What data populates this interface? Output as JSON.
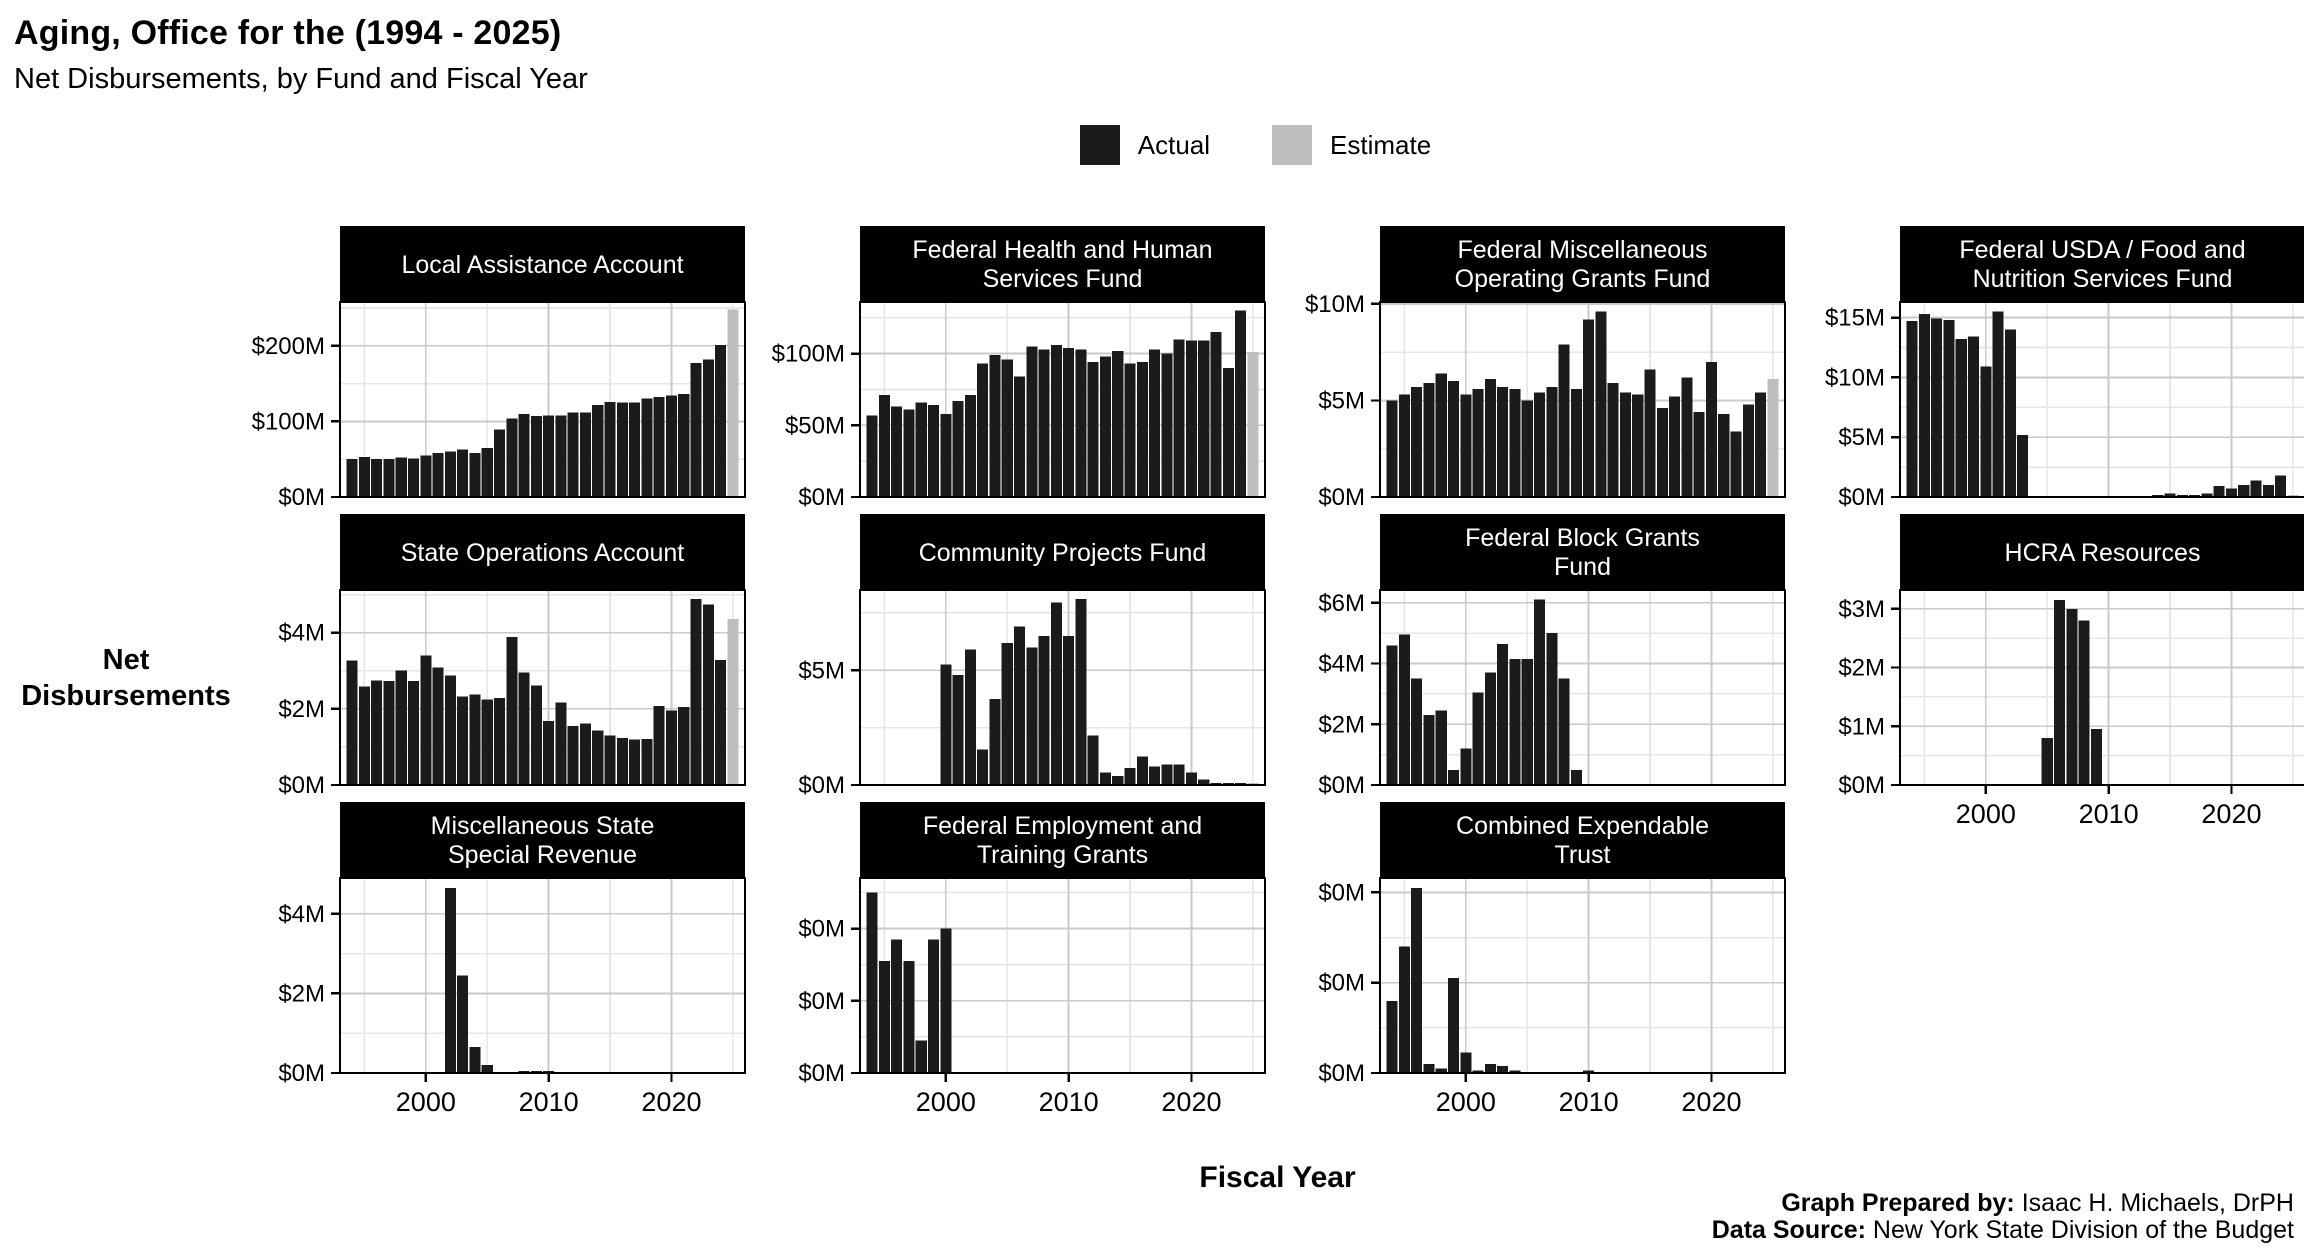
{
  "header": {
    "title": "Aging, Office for the (1994 - 2025)",
    "subtitle": "Net Disbursements, by Fund and Fiscal Year"
  },
  "legend": {
    "actual": "Actual",
    "estimate": "Estimate"
  },
  "axes": {
    "y_title": "Net\nDisbursements",
    "x_title": "Fiscal Year"
  },
  "footer": {
    "prepared_label": "Graph Prepared by:",
    "prepared_value": " Isaac H. Michaels, DrPH",
    "source_label": "Data Source:",
    "source_value": " New York State Division of the Budget"
  },
  "colors": {
    "actual": "#1b1b1b",
    "estimate": "#bebebe",
    "strip_bg": "#000000",
    "strip_text": "#ffffff",
    "grid_major": "#cacaca",
    "grid_minor": "#e6e6e6",
    "panel_border": "#000000",
    "tick": "#000000"
  },
  "chart_data": {
    "type": "bar",
    "title": "Net Disbursements, by Fund and Fiscal Year",
    "x_start": 1994,
    "x_end": 2025,
    "x_axis": {
      "major_ticks": [
        2000,
        2010,
        2020
      ],
      "tick_labels": [
        "2000",
        "2010",
        "2020"
      ],
      "minor_gridlines": [
        1995,
        2005,
        2015,
        2025
      ]
    },
    "estimate_year": 2025,
    "panels": [
      {
        "title_lines": [
          "Local Assistance Account"
        ],
        "ymax": 258,
        "show_x_axis": false,
        "has_estimate": true,
        "y_ticks": [
          {
            "v": 0,
            "label": "$0M"
          },
          {
            "v": 100,
            "label": "$100M"
          },
          {
            "v": 200,
            "label": "$200M"
          }
        ],
        "y_minor": [
          50,
          150,
          250
        ],
        "values": [
          50,
          53,
          50,
          50,
          52,
          51,
          55,
          58,
          60,
          63,
          58,
          65,
          89,
          104,
          110,
          107,
          108,
          108,
          112,
          112,
          122,
          126,
          125,
          125,
          130,
          132,
          134,
          136,
          177,
          182,
          201,
          248
        ]
      },
      {
        "title_lines": [
          "Federal Health and Human",
          "Services Fund"
        ],
        "ymax": 136,
        "show_x_axis": false,
        "has_estimate": true,
        "y_ticks": [
          {
            "v": 0,
            "label": "$0M"
          },
          {
            "v": 50,
            "label": "$50M"
          },
          {
            "v": 100,
            "label": "$100M"
          }
        ],
        "y_minor": [
          25,
          75,
          125
        ],
        "values": [
          57,
          71,
          63,
          61,
          66,
          64,
          58,
          67,
          71,
          93,
          99,
          96,
          84,
          105,
          103,
          106,
          104,
          103,
          94,
          98,
          102,
          93,
          94,
          103,
          100,
          110,
          109,
          109,
          115,
          90,
          130,
          101
        ]
      },
      {
        "title_lines": [
          "Federal Miscellaneous",
          "Operating Grants Fund"
        ],
        "ymax": 10.1,
        "show_x_axis": false,
        "has_estimate": true,
        "y_ticks": [
          {
            "v": 0,
            "label": "$0M"
          },
          {
            "v": 5,
            "label": "$5M"
          },
          {
            "v": 10,
            "label": "$10M"
          }
        ],
        "y_minor": [
          2.5,
          7.5
        ],
        "values": [
          5.0,
          5.3,
          5.7,
          5.9,
          6.4,
          6.0,
          5.3,
          5.6,
          6.1,
          5.7,
          5.6,
          5.0,
          5.4,
          5.7,
          7.9,
          5.6,
          9.2,
          9.6,
          5.9,
          5.4,
          5.3,
          6.6,
          4.6,
          5.2,
          6.2,
          4.4,
          7.0,
          4.3,
          3.4,
          4.8,
          5.4,
          6.1
        ]
      },
      {
        "title_lines": [
          "Federal USDA / Food and",
          "Nutrition Services Fund"
        ],
        "ymax": 16.3,
        "show_x_axis": false,
        "has_estimate": true,
        "y_ticks": [
          {
            "v": 0,
            "label": "$0M"
          },
          {
            "v": 5,
            "label": "$5M"
          },
          {
            "v": 10,
            "label": "$10M"
          },
          {
            "v": 15,
            "label": "$15M"
          }
        ],
        "y_minor": [
          2.5,
          7.5,
          12.5
        ],
        "values": [
          14.7,
          15.3,
          14.9,
          14.8,
          13.2,
          13.4,
          10.9,
          15.5,
          14.0,
          5.2,
          0,
          0,
          0,
          0,
          0,
          0,
          0,
          0,
          0,
          0,
          0.15,
          0.3,
          0.05,
          0.1,
          0.3,
          0.9,
          0.7,
          1.0,
          1.4,
          1.0,
          1.8,
          0.1
        ]
      },
      {
        "title_lines": [
          "State Operations Account"
        ],
        "ymax": 5.12,
        "show_x_axis": false,
        "has_estimate": true,
        "y_ticks": [
          {
            "v": 0,
            "label": "$0M"
          },
          {
            "v": 2,
            "label": "$2M"
          },
          {
            "v": 4,
            "label": "$4M"
          }
        ],
        "y_minor": [
          1,
          3,
          5
        ],
        "values": [
          3.27,
          2.59,
          2.74,
          2.73,
          3.0,
          2.73,
          3.4,
          3.08,
          2.88,
          2.32,
          2.37,
          2.24,
          2.28,
          3.89,
          2.96,
          2.61,
          1.68,
          2.16,
          1.55,
          1.62,
          1.43,
          1.3,
          1.23,
          1.19,
          1.21,
          2.07,
          1.96,
          2.05,
          4.88,
          4.74,
          3.28,
          4.36
        ]
      },
      {
        "title_lines": [
          "Community Projects Fund"
        ],
        "ymax": 8.5,
        "show_x_axis": false,
        "has_estimate": true,
        "y_ticks": [
          {
            "v": 0,
            "label": "$0M"
          },
          {
            "v": 5,
            "label": "$5M"
          }
        ],
        "y_minor": [
          2.5,
          7.5
        ],
        "values": [
          0,
          0,
          0,
          0,
          0,
          0,
          5.25,
          4.8,
          5.9,
          1.55,
          3.75,
          6.2,
          6.9,
          6.0,
          6.5,
          7.95,
          6.5,
          8.1,
          2.15,
          0.55,
          0.4,
          0.75,
          1.25,
          0.8,
          0.9,
          0.9,
          0.55,
          0.25,
          0.08,
          0.03,
          0.06,
          0.03
        ]
      },
      {
        "title_lines": [
          "Federal Block Grants",
          "Fund"
        ],
        "ymax": 6.42,
        "show_x_axis": false,
        "has_estimate": false,
        "y_ticks": [
          {
            "v": 0,
            "label": "$0M"
          },
          {
            "v": 2,
            "label": "$2M"
          },
          {
            "v": 4,
            "label": "$4M"
          },
          {
            "v": 6,
            "label": "$6M"
          }
        ],
        "y_minor": [
          1,
          3,
          5
        ],
        "values": [
          4.6,
          4.95,
          3.5,
          2.3,
          2.45,
          0.5,
          1.2,
          3.05,
          3.7,
          4.65,
          4.15,
          4.15,
          6.1,
          5.0,
          3.5,
          0.5,
          0,
          0,
          0,
          0,
          0,
          0,
          0,
          0,
          0,
          0,
          0,
          0,
          0,
          0,
          0,
          0
        ]
      },
      {
        "title_lines": [
          "HCRA Resources"
        ],
        "ymax": 3.32,
        "show_x_axis": true,
        "has_estimate": false,
        "y_ticks": [
          {
            "v": 0,
            "label": "$0M"
          },
          {
            "v": 1,
            "label": "$1M"
          },
          {
            "v": 2,
            "label": "$2M"
          },
          {
            "v": 3,
            "label": "$3M"
          }
        ],
        "y_minor": [
          0.5,
          1.5,
          2.5
        ],
        "values": [
          0,
          0,
          0,
          0,
          0,
          0,
          0,
          0,
          0,
          0,
          0,
          0.8,
          3.15,
          3.0,
          2.8,
          0.95,
          0,
          0,
          0,
          0,
          0,
          0,
          0,
          0,
          0,
          0,
          0,
          0,
          0,
          0,
          0,
          0
        ]
      },
      {
        "title_lines": [
          "Miscellaneous State",
          "Special Revenue"
        ],
        "ymax": 4.9,
        "show_x_axis": true,
        "has_estimate": false,
        "y_ticks": [
          {
            "v": 0,
            "label": "$0M"
          },
          {
            "v": 2,
            "label": "$2M"
          },
          {
            "v": 4,
            "label": "$4M"
          }
        ],
        "y_minor": [
          1,
          3
        ],
        "values": [
          0,
          0,
          0,
          0,
          0,
          0,
          0,
          0,
          4.65,
          2.45,
          0.65,
          0.2,
          0,
          0,
          0.02,
          0.02,
          0.02,
          0,
          0,
          0,
          0,
          0,
          0,
          0,
          0,
          0,
          0,
          0,
          0,
          0,
          0,
          0
        ]
      },
      {
        "title_lines": [
          "Federal Employment and",
          "Training Grants"
        ],
        "ymax": 0.54,
        "show_x_axis": true,
        "has_estimate": false,
        "y_ticks": [
          {
            "v": 0,
            "label": "$0M"
          },
          {
            "v": 0.2,
            "label": "$0M"
          },
          {
            "v": 0.4,
            "label": "$0M"
          }
        ],
        "y_minor": [
          0.1,
          0.3,
          0.5
        ],
        "values": [
          0.5,
          0.31,
          0.37,
          0.31,
          0.09,
          0.37,
          0.4,
          0,
          0,
          0,
          0,
          0,
          0,
          0,
          0,
          0,
          0,
          0,
          0,
          0,
          0,
          0,
          0,
          0,
          0,
          0,
          0,
          0,
          0,
          0,
          0,
          0
        ]
      },
      {
        "title_lines": [
          "Combined Expendable",
          "Trust"
        ],
        "ymax": 0.432,
        "show_x_axis": true,
        "has_estimate": false,
        "y_ticks": [
          {
            "v": 0,
            "label": "$0M"
          },
          {
            "v": 0.2,
            "label": "$0M"
          },
          {
            "v": 0.4,
            "label": "$0M"
          }
        ],
        "y_minor": [
          0.1,
          0.3
        ],
        "values": [
          0.16,
          0.28,
          0.41,
          0.02,
          0.01,
          0.21,
          0.045,
          0.005,
          0.02,
          0.015,
          0.005,
          0,
          0,
          0,
          0,
          0,
          0.005,
          0,
          0,
          0,
          0,
          0,
          0,
          0,
          0,
          0,
          0,
          0,
          0,
          0,
          0,
          0
        ]
      }
    ]
  }
}
